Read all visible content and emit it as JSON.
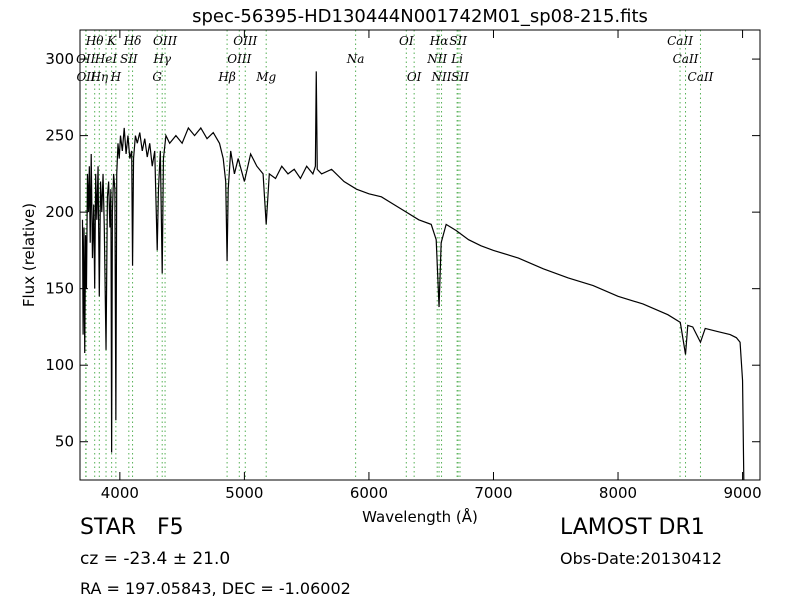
{
  "chart_data": {
    "type": "line",
    "title": "spec-56395-HD130444N001742M01_sp08-215.fits",
    "xlabel": "Wavelength (Å)",
    "ylabel": "Flux (relative)",
    "color": "#000000",
    "line_color": "#55b055",
    "xlim": [
      3680,
      9140
    ],
    "ylim": [
      25,
      319
    ],
    "xticks": [
      4000,
      5000,
      6000,
      7000,
      8000,
      9000
    ],
    "yticks": [
      50,
      100,
      150,
      200,
      250,
      300
    ],
    "x": [
      3700,
      3705,
      3712,
      3718,
      3725,
      3732,
      3740,
      3748,
      3755,
      3762,
      3770,
      3780,
      3790,
      3798,
      3806,
      3815,
      3825,
      3835,
      3845,
      3855,
      3865,
      3875,
      3889,
      3900,
      3910,
      3920,
      3928,
      3934,
      3940,
      3950,
      3960,
      3968,
      3975,
      3985,
      3995,
      4005,
      4020,
      4035,
      4050,
      4065,
      4080,
      4095,
      4102,
      4110,
      4125,
      4140,
      4160,
      4180,
      4200,
      4220,
      4240,
      4260,
      4280,
      4300,
      4310,
      4325,
      4340,
      4350,
      4370,
      4400,
      4450,
      4500,
      4550,
      4600,
      4650,
      4700,
      4750,
      4800,
      4830,
      4850,
      4861,
      4870,
      4890,
      4920,
      4950,
      5000,
      5050,
      5100,
      5150,
      5175,
      5200,
      5250,
      5300,
      5350,
      5400,
      5450,
      5500,
      5550,
      5570,
      5577,
      5585,
      5620,
      5700,
      5800,
      5900,
      6000,
      6100,
      6200,
      6300,
      6400,
      6500,
      6540,
      6563,
      6580,
      6620,
      6700,
      6800,
      6900,
      7000,
      7200,
      7400,
      7600,
      7800,
      8000,
      8200,
      8400,
      8500,
      8542,
      8560,
      8600,
      8662,
      8700,
      8800,
      8900,
      8950,
      8980,
      9000,
      9010
    ],
    "values": [
      195,
      120,
      190,
      108,
      185,
      150,
      225,
      200,
      230,
      180,
      238,
      170,
      205,
      150,
      225,
      195,
      230,
      145,
      220,
      200,
      225,
      190,
      110,
      210,
      220,
      190,
      215,
      43,
      200,
      225,
      215,
      64,
      225,
      245,
      235,
      250,
      240,
      255,
      238,
      250,
      235,
      240,
      165,
      235,
      250,
      245,
      252,
      240,
      248,
      236,
      245,
      230,
      240,
      175,
      215,
      240,
      160,
      235,
      250,
      245,
      250,
      245,
      255,
      250,
      255,
      248,
      252,
      245,
      235,
      220,
      168,
      215,
      240,
      225,
      235,
      220,
      238,
      230,
      225,
      192,
      225,
      222,
      230,
      225,
      228,
      222,
      230,
      225,
      230,
      292,
      228,
      225,
      228,
      220,
      215,
      212,
      210,
      205,
      200,
      195,
      192,
      182,
      138,
      180,
      192,
      188,
      182,
      178,
      175,
      170,
      163,
      157,
      152,
      145,
      140,
      133,
      128,
      107,
      126,
      125,
      115,
      124,
      122,
      120,
      118,
      115,
      90,
      25
    ],
    "lines": [
      {
        "label": "OII",
        "wavelength": 3726
      },
      {
        "label": "OII",
        "wavelength": 3729
      },
      {
        "label": "Hθ",
        "wavelength": 3798
      },
      {
        "label": "Hη",
        "wavelength": 3835
      },
      {
        "label": "HeI",
        "wavelength": 3889
      },
      {
        "label": "K",
        "wavelength": 3934
      },
      {
        "label": "H",
        "wavelength": 3968
      },
      {
        "label": "SII",
        "wavelength": 4072
      },
      {
        "label": "Hδ",
        "wavelength": 4102
      },
      {
        "label": "G",
        "wavelength": 4300
      },
      {
        "label": "Hγ",
        "wavelength": 4340
      },
      {
        "label": "OIII",
        "wavelength": 4363
      },
      {
        "label": "Hβ",
        "wavelength": 4861
      },
      {
        "label": "OIII",
        "wavelength": 4959
      },
      {
        "label": "OIII",
        "wavelength": 5007
      },
      {
        "label": "Mg",
        "wavelength": 5175
      },
      {
        "label": "Na",
        "wavelength": 5893
      },
      {
        "label": "OI",
        "wavelength": 6300
      },
      {
        "label": "OI",
        "wavelength": 6363
      },
      {
        "label": "NII",
        "wavelength": 6548
      },
      {
        "label": "Hα",
        "wavelength": 6563
      },
      {
        "label": "NII",
        "wavelength": 6583
      },
      {
        "label": "Li",
        "wavelength": 6708
      },
      {
        "label": "SII",
        "wavelength": 6716
      },
      {
        "label": "SII",
        "wavelength": 6731
      },
      {
        "label": "CaII",
        "wavelength": 8498
      },
      {
        "label": "CaII",
        "wavelength": 8542
      },
      {
        "label": "CaII",
        "wavelength": 8662
      }
    ]
  },
  "info": {
    "class": "STAR",
    "subclass": "F5",
    "redshift": "cz = -23.4 ± 21.0",
    "survey": "LAMOST DR1",
    "obs_date": "Obs-Date:20130412",
    "coords": "RA = 197.05843, DEC = -1.06002"
  }
}
